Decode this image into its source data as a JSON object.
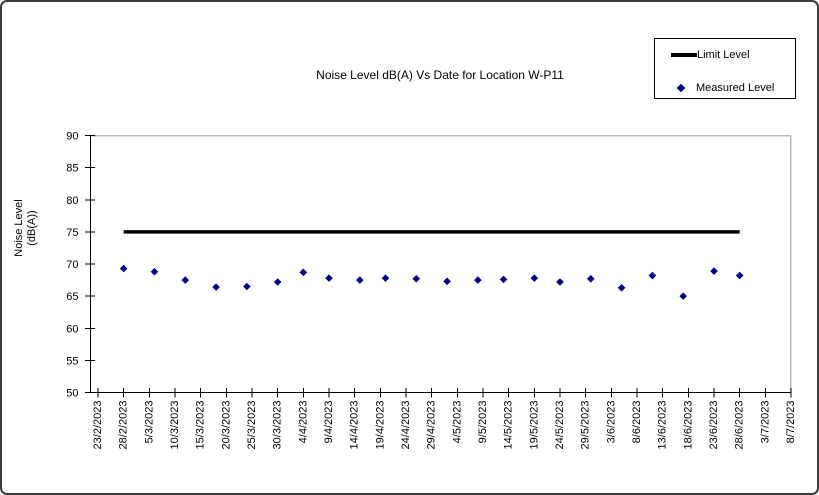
{
  "chart": {
    "title": "Noise Level dB(A) Vs Date for Location W-P11",
    "ylabel_line1": "Noise Level",
    "ylabel_line2": "(dB(A))",
    "legend": {
      "limit_label": "Limit Level",
      "measured_label": "Measured Level"
    },
    "colors": {
      "measured_point": "#000080",
      "limit_line": "#000000",
      "plot_border_gray": "#b8b8b8",
      "axis_black": "#000000"
    }
  },
  "chart_data": {
    "type": "scatter",
    "title": "Noise Level dB(A) Vs Date for Location W-P11",
    "xlabel": "",
    "ylabel": "Noise Level (dB(A))",
    "ylim": [
      50,
      90
    ],
    "ytick_step": 5,
    "yticks": [
      50,
      55,
      60,
      65,
      70,
      75,
      80,
      85,
      90
    ],
    "grid": false,
    "legend_position": "top-right",
    "x_axis": {
      "start_date": "23/2/2023",
      "end_date": "8/7/2023",
      "tick_interval_days": 5,
      "span_days": 135,
      "tick_labels": [
        "23/2/2023",
        "28/2/2023",
        "5/3/2023",
        "10/3/2023",
        "15/3/2023",
        "20/3/2023",
        "25/3/2023",
        "30/3/2023",
        "4/4/2023",
        "9/4/2023",
        "14/4/2023",
        "19/4/2023",
        "24/4/2023",
        "29/4/2023",
        "4/5/2023",
        "9/5/2023",
        "14/5/2023",
        "19/5/2023",
        "24/5/2023",
        "29/5/2023",
        "3/6/2023",
        "8/6/2023",
        "13/6/2023",
        "18/6/2023",
        "23/6/2023",
        "28/6/2023",
        "3/7/2023",
        "8/7/2023"
      ]
    },
    "series": [
      {
        "name": "Limit Level",
        "type": "line",
        "color": "#000000",
        "points": [
          {
            "date": "28/2/2023",
            "day": 5,
            "value": 75
          },
          {
            "date": "28/6/2023",
            "day": 125,
            "value": 75
          }
        ]
      },
      {
        "name": "Measured Level",
        "type": "scatter",
        "color": "#000080",
        "points": [
          {
            "date": "28/2/2023",
            "day": 5,
            "value": 69.3
          },
          {
            "date": "6/3/2023",
            "day": 11,
            "value": 68.8
          },
          {
            "date": "12/3/2023",
            "day": 17,
            "value": 67.5
          },
          {
            "date": "18/3/2023",
            "day": 23,
            "value": 66.4
          },
          {
            "date": "24/3/2023",
            "day": 29,
            "value": 66.5
          },
          {
            "date": "30/3/2023",
            "day": 35,
            "value": 67.2
          },
          {
            "date": "4/4/2023",
            "day": 40,
            "value": 68.7
          },
          {
            "date": "9/4/2023",
            "day": 45,
            "value": 67.8
          },
          {
            "date": "15/4/2023",
            "day": 51,
            "value": 67.5
          },
          {
            "date": "20/4/2023",
            "day": 56,
            "value": 67.8
          },
          {
            "date": "26/4/2023",
            "day": 62,
            "value": 67.7
          },
          {
            "date": "2/5/2023",
            "day": 68,
            "value": 67.3
          },
          {
            "date": "8/5/2023",
            "day": 74,
            "value": 67.5
          },
          {
            "date": "13/5/2023",
            "day": 79,
            "value": 67.6
          },
          {
            "date": "19/5/2023",
            "day": 85,
            "value": 67.8
          },
          {
            "date": "24/5/2023",
            "day": 90,
            "value": 67.2
          },
          {
            "date": "30/5/2023",
            "day": 96,
            "value": 67.7
          },
          {
            "date": "5/6/2023",
            "day": 102,
            "value": 66.3
          },
          {
            "date": "11/6/2023",
            "day": 108,
            "value": 68.2
          },
          {
            "date": "17/6/2023",
            "day": 114,
            "value": 65.0
          },
          {
            "date": "23/6/2023",
            "day": 120,
            "value": 68.9
          },
          {
            "date": "28/6/2023",
            "day": 125,
            "value": 68.2
          }
        ]
      }
    ]
  }
}
